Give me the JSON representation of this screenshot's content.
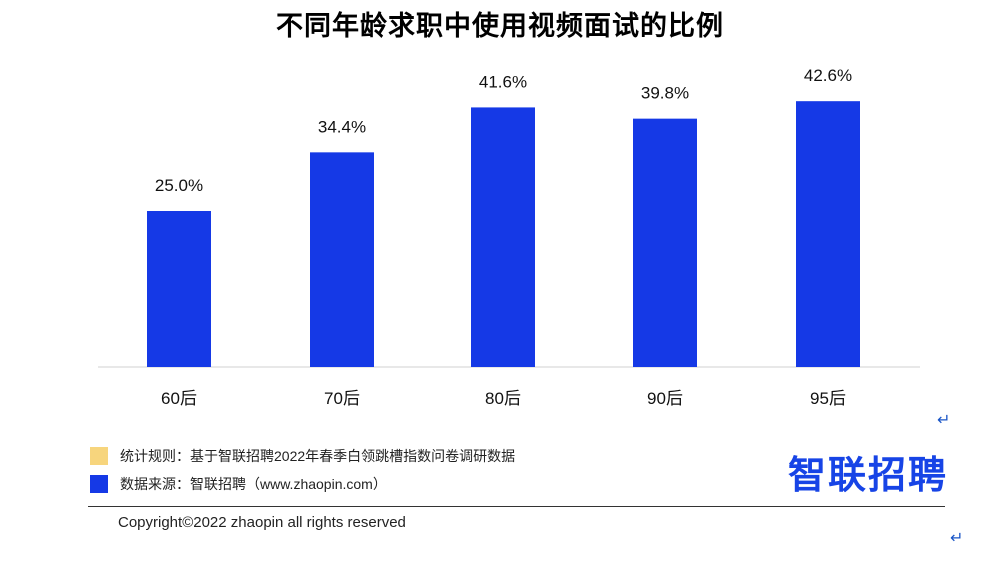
{
  "title": "不同年龄求职中使用视频面试的比例",
  "colors": {
    "bar": "#1539e6",
    "rule_note": "#f7d57d",
    "source_note": "#1539e6",
    "brand": "#1744e6"
  },
  "chart_data": {
    "type": "bar",
    "categories": [
      "60后",
      "70后",
      "80后",
      "90后",
      "95后"
    ],
    "values": [
      25.0,
      34.4,
      41.6,
      39.8,
      42.6
    ],
    "value_labels": [
      "25.0%",
      "34.4%",
      "41.6%",
      "39.8%",
      "42.6%"
    ],
    "unit": "%",
    "ylim": [
      0,
      50
    ],
    "grid": false,
    "axis_line": true
  },
  "notes": {
    "rule_text": "统计规则：基于智联招聘2022年春季白领跳槽指数问卷调研数据",
    "source_text": "数据来源：智联招聘（www.zhaopin.com）"
  },
  "brand": {
    "logo_text": "智联招聘"
  },
  "footer": {
    "copyright": "Copyright©2022 zhaopin all rights reserved"
  },
  "marks": {
    "return_symbol": "↵"
  }
}
